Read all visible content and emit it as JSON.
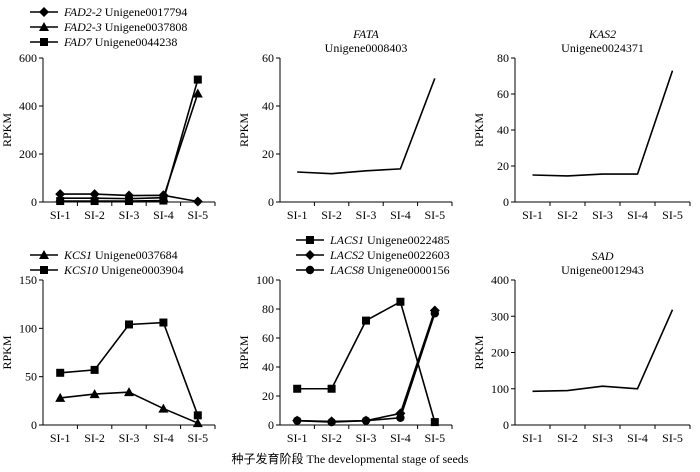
{
  "caption": "种子发育阶段 The developmental stage of seeds",
  "chart_data": [
    {
      "id": "fad",
      "type": "line",
      "title": "",
      "subtitle": "",
      "ylabel": "RPKM",
      "categories": [
        "SI-1",
        "SI-2",
        "SI-3",
        "SI-4",
        "SI-5"
      ],
      "ylim": [
        0,
        600
      ],
      "yticks": [
        0,
        200,
        400,
        600
      ],
      "legend": "top-left",
      "series": [
        {
          "gene": "FAD2-2",
          "id": "Unigene0017794",
          "marker": "diamond",
          "values": [
            33,
            33,
            27,
            28,
            2
          ]
        },
        {
          "gene": "FAD2-3",
          "id": "Unigene0037808",
          "marker": "triangle",
          "values": [
            16,
            16,
            14,
            18,
            452
          ]
        },
        {
          "gene": "FAD7",
          "id": "Unigene0044238",
          "marker": "square",
          "values": [
            4,
            4,
            4,
            6,
            510
          ]
        }
      ]
    },
    {
      "id": "fata",
      "type": "line",
      "title": "FATA",
      "subtitle": "Unigene0008403",
      "ylabel": "RPKM",
      "categories": [
        "SI-1",
        "SI-2",
        "SI-3",
        "SI-4",
        "SI-5"
      ],
      "ylim": [
        0,
        60
      ],
      "yticks": [
        0,
        20,
        40,
        60
      ],
      "series": [
        {
          "gene": "FATA",
          "id": "Unigene0008403",
          "marker": "none",
          "values": [
            12.5,
            11.8,
            13,
            13.8,
            51.5
          ]
        }
      ]
    },
    {
      "id": "kas2",
      "type": "line",
      "title": "KAS2",
      "subtitle": "Unigene0024371",
      "ylabel": "RPKM",
      "categories": [
        "SI-1",
        "SI-2",
        "SI-3",
        "SI-4",
        "SI-5"
      ],
      "ylim": [
        0,
        80
      ],
      "yticks": [
        0,
        20,
        40,
        60,
        80
      ],
      "series": [
        {
          "gene": "KAS2",
          "id": "Unigene0024371",
          "marker": "none",
          "values": [
            15,
            14.5,
            15.5,
            15.5,
            73
          ]
        }
      ]
    },
    {
      "id": "kcs",
      "type": "line",
      "title": "",
      "subtitle": "",
      "ylabel": "RPKM",
      "categories": [
        "SI-1",
        "SI-2",
        "SI-3",
        "SI-4",
        "SI-5"
      ],
      "ylim": [
        0,
        150
      ],
      "yticks": [
        0,
        50,
        100,
        150
      ],
      "legend": "top-left",
      "series": [
        {
          "gene": "KCS1",
          "id": "Unigene0037684",
          "marker": "triangle",
          "values": [
            28,
            32,
            34,
            17,
            2
          ]
        },
        {
          "gene": "KCS10",
          "id": "Unigene0003904",
          "marker": "square",
          "values": [
            54,
            57,
            104,
            106,
            10
          ]
        }
      ]
    },
    {
      "id": "lacs",
      "type": "line",
      "title": "",
      "subtitle": "",
      "ylabel": "RPKM",
      "categories": [
        "SI-1",
        "SI-2",
        "SI-3",
        "SI-4",
        "SI-5"
      ],
      "ylim": [
        0,
        100
      ],
      "yticks": [
        0,
        20,
        40,
        60,
        80,
        100
      ],
      "legend": "top-left",
      "series": [
        {
          "gene": "LACS1",
          "id": "Unigene0022485",
          "marker": "square",
          "values": [
            25,
            25,
            72,
            85,
            2
          ]
        },
        {
          "gene": "LACS2",
          "id": "Unigene0022603",
          "marker": "diamond",
          "values": [
            3,
            2.5,
            3,
            8,
            79
          ]
        },
        {
          "gene": "LACS8",
          "id": "Unigene0000156",
          "marker": "circle",
          "values": [
            3,
            2,
            3,
            5,
            77
          ]
        }
      ]
    },
    {
      "id": "sad",
      "type": "line",
      "title": "SAD",
      "subtitle": "Unigene0012943",
      "ylabel": "RPKM",
      "categories": [
        "SI-1",
        "SI-2",
        "SI-3",
        "SI-4",
        "SI-5"
      ],
      "ylim": [
        0,
        400
      ],
      "yticks": [
        0,
        100,
        200,
        300,
        400
      ],
      "series": [
        {
          "gene": "SAD",
          "id": "Unigene0012943",
          "marker": "none",
          "values": [
            93,
            95,
            107,
            100,
            318
          ]
        }
      ]
    }
  ]
}
